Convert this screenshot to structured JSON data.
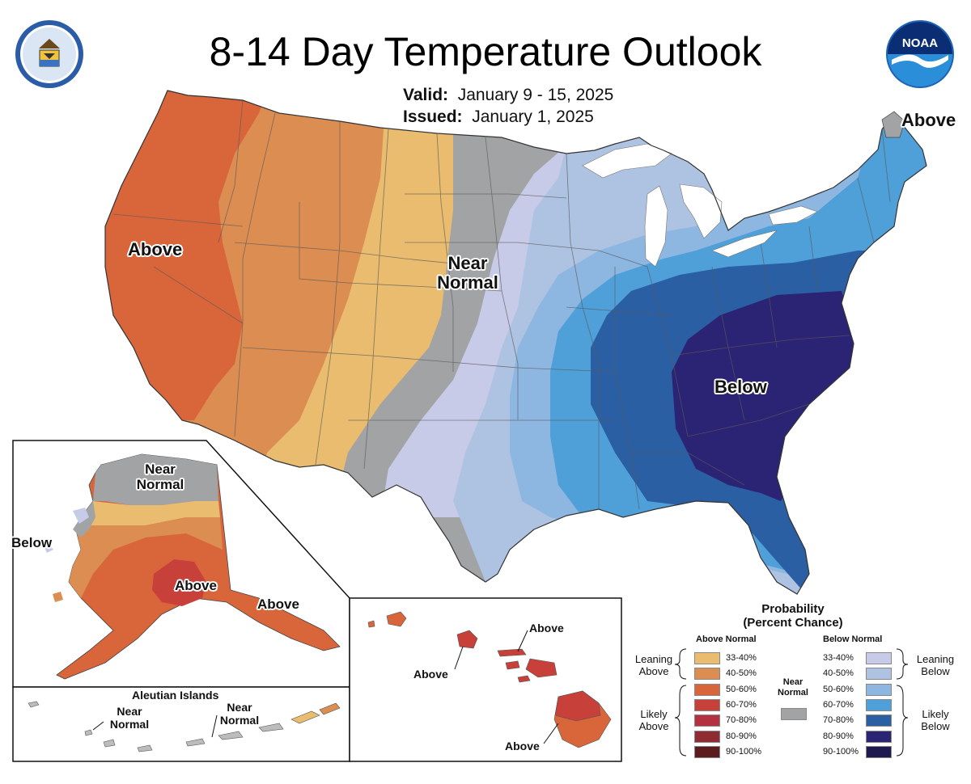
{
  "title": "8-14 Day Temperature Outlook",
  "valid_label": "Valid:",
  "valid_value": "January 9 - 15, 2025",
  "issued_label": "Issued:",
  "issued_value": "January 1, 2025",
  "logos": {
    "left": "commerce-seal-icon",
    "right": "noaa-logo-icon",
    "noaa_text": "NOAA"
  },
  "map_labels": {
    "west_above": "Above",
    "central_near_1": "Near",
    "central_near_2": "Normal",
    "east_below": "Below",
    "maine_above": "Above"
  },
  "alaska_labels": {
    "near_1": "Near",
    "near_2": "Normal",
    "below": "Below",
    "above_center": "Above",
    "above_se": "Above"
  },
  "aleutian": {
    "title": "Aleutian Islands",
    "near_a_1": "Near",
    "near_a_2": "Normal",
    "near_b_1": "Near",
    "near_b_2": "Normal"
  },
  "hawaii_labels": {
    "above_1": "Above",
    "above_2": "Above",
    "above_3": "Above"
  },
  "legend": {
    "title_1": "Probability",
    "title_2": "(Percent Chance)",
    "above_header": "Above Normal",
    "below_header": "Below Normal",
    "near_1": "Near",
    "near_2": "Normal",
    "leaning_above_1": "Leaning",
    "leaning_above_2": "Above",
    "likely_above_1": "Likely",
    "likely_above_2": "Above",
    "leaning_below_1": "Leaning",
    "leaning_below_2": "Below",
    "likely_below_1": "Likely",
    "likely_below_2": "Below",
    "ranges": [
      "33-40%",
      "40-50%",
      "50-60%",
      "60-70%",
      "70-80%",
      "80-90%",
      "90-100%"
    ],
    "above_colors": [
      "#e9bc6f",
      "#db8d52",
      "#d9653a",
      "#c8403a",
      "#b43142",
      "#8e2b33",
      "#5a1c1c"
    ],
    "below_colors": [
      "#c7cbe8",
      "#aec3e1",
      "#8db7e0",
      "#4f9fd9",
      "#2a5fa4",
      "#2b2374",
      "#1e1a4f"
    ],
    "near_color": "#a2a3a4"
  }
}
